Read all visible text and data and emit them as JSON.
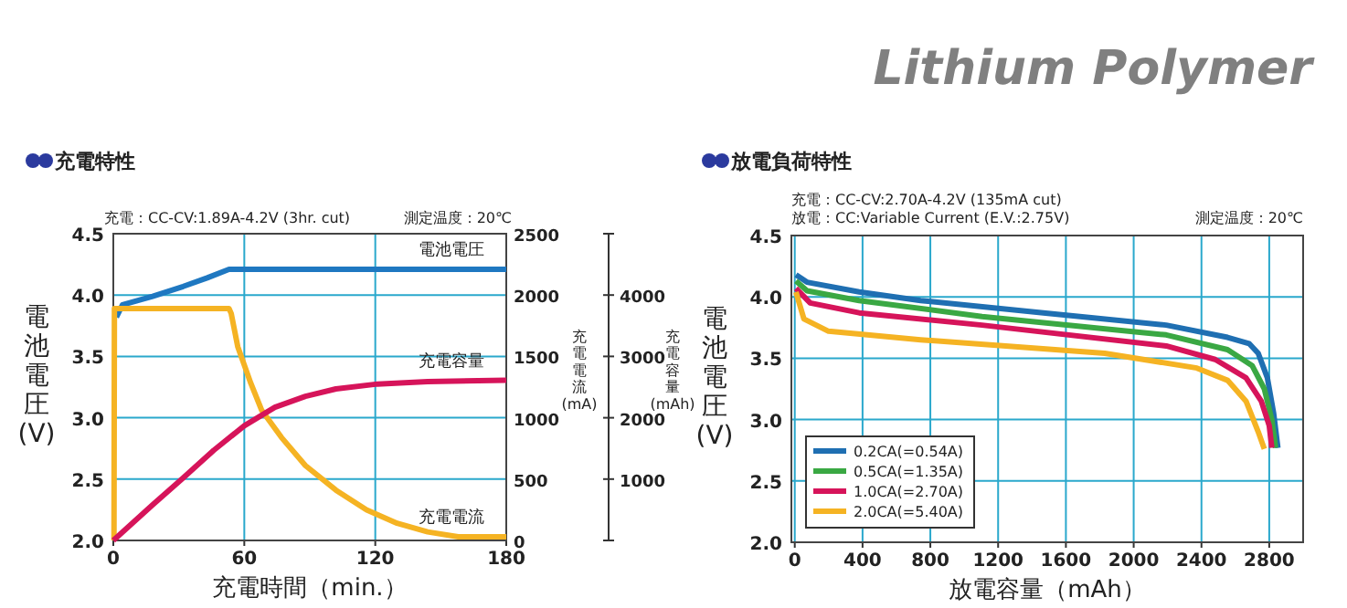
{
  "chart_data": [
    {
      "type": "line",
      "title": "充電特性",
      "xlabel": "充電時間（min.）",
      "ylabel": "電池電圧(V)",
      "y2label": "充電電流(mA)",
      "y3label": "充電容量(mAh)",
      "annotations": [
        "充電：CC-CV:1.89A-4.2V (3hr. cut)",
        "測定温度：20℃",
        "Lithium Polymer"
      ],
      "xlim": [
        0,
        180
      ],
      "xticks": [
        0,
        60,
        120,
        180
      ],
      "ylim": [
        2,
        4.5
      ],
      "yticks": [
        {
          "value": 2,
          "label": "2.0"
        },
        2.5,
        {
          "value": 3,
          "label": "3.0"
        },
        3.5,
        {
          "value": 4,
          "label": "4.0"
        },
        4.5
      ],
      "y2lim": [
        0,
        2500
      ],
      "y2ticks": [
        0,
        500,
        1000,
        1500,
        2000,
        2500
      ],
      "y3lim": [
        0,
        5000
      ],
      "y3ticks": [
        {
          "value": 0,
          "label": null
        },
        1000,
        2000,
        3000,
        4000,
        {
          "value": 5000,
          "label": null
        }
      ],
      "grid": true,
      "legend": false,
      "marker": "none",
      "line_style": "solid",
      "series": [
        {
          "name": "電池電圧",
          "color": "#1f78c1",
          "x": [
            1.4,
            4.2,
            18,
            32,
            43,
            53,
            180
          ],
          "values": [
            3.82,
            3.92,
            3.99,
            4.07,
            4.14,
            4.21,
            4.21
          ]
        },
        {
          "name": "充電電流",
          "color": "#f5b323",
          "axis": "y2",
          "x": [
            0.3,
            0.5,
            53,
            54,
            57,
            63,
            68,
            77,
            88,
            102,
            116,
            130,
            144,
            158,
            180
          ],
          "values": [
            0,
            1890,
            1890,
            1850,
            1580,
            1280,
            1060,
            840,
            610,
            410,
            250,
            140,
            70,
            30,
            30
          ]
        },
        {
          "name": "充電容量",
          "color": "#d6145a",
          "axis": "y3",
          "x": [
            0,
            18,
            32,
            46,
            60,
            74,
            88,
            102,
            121,
            144,
            180
          ],
          "values": [
            0,
            580,
            1020,
            1470,
            1870,
            2170,
            2350,
            2470,
            2550,
            2590,
            2610
          ]
        }
      ]
    },
    {
      "type": "line",
      "title": "放電負荷特性",
      "xlabel": "放電容量（mAh）",
      "ylabel": "電池電圧(V)",
      "annotations": [
        "充電：CC-CV:2.70A-4.2V (135mA cut)",
        "放電：CC:Variable Current (E.V.:2.75V)",
        "測定温度：20℃"
      ],
      "xlim": [
        -20,
        3000
      ],
      "xticks": [
        0,
        400,
        800,
        1200,
        1600,
        2000,
        2400,
        2800
      ],
      "ylim": [
        2,
        4.5
      ],
      "yticks": [
        {
          "value": 2,
          "label": "2.0"
        },
        2.5,
        {
          "value": 3,
          "label": "3.0"
        },
        3.5,
        {
          "value": 4,
          "label": "4.0"
        },
        4.5
      ],
      "grid": true,
      "legend": "bottom left",
      "marker": "none",
      "line_style": "solid",
      "series": [
        {
          "name": "0.2CA(=0.54A)",
          "color": "#1f6fb2",
          "x": [
            7,
            72,
            380,
            743,
            1467,
            2192,
            2554,
            2681,
            2735,
            2789,
            2826,
            2851
          ],
          "values": [
            4.18,
            4.12,
            4.04,
            3.97,
            3.87,
            3.77,
            3.67,
            3.62,
            3.54,
            3.34,
            3.05,
            2.77
          ]
        },
        {
          "name": "0.5CA(=1.35A)",
          "color": "#3aa843",
          "x": [
            7,
            72,
            380,
            1105,
            2192,
            2554,
            2699,
            2771,
            2815,
            2837
          ],
          "values": [
            4.13,
            4.05,
            3.97,
            3.84,
            3.69,
            3.57,
            3.44,
            3.25,
            3.0,
            2.77
          ]
        },
        {
          "name": "1.0CA(=2.70A)",
          "color": "#d6145a",
          "x": [
            7,
            91,
            380,
            1105,
            2192,
            2481,
            2663,
            2753,
            2800,
            2815
          ],
          "values": [
            4.07,
            3.95,
            3.87,
            3.77,
            3.6,
            3.49,
            3.34,
            3.15,
            2.95,
            2.77
          ]
        },
        {
          "name": "2.0CA(=5.40A)",
          "color": "#f5b323",
          "x": [
            7,
            54,
            199,
            743,
            1829,
            2373,
            2554,
            2663,
            2735,
            2771
          ],
          "values": [
            4.04,
            3.82,
            3.72,
            3.65,
            3.54,
            3.42,
            3.32,
            3.15,
            2.9,
            2.76
          ]
        }
      ]
    }
  ]
}
